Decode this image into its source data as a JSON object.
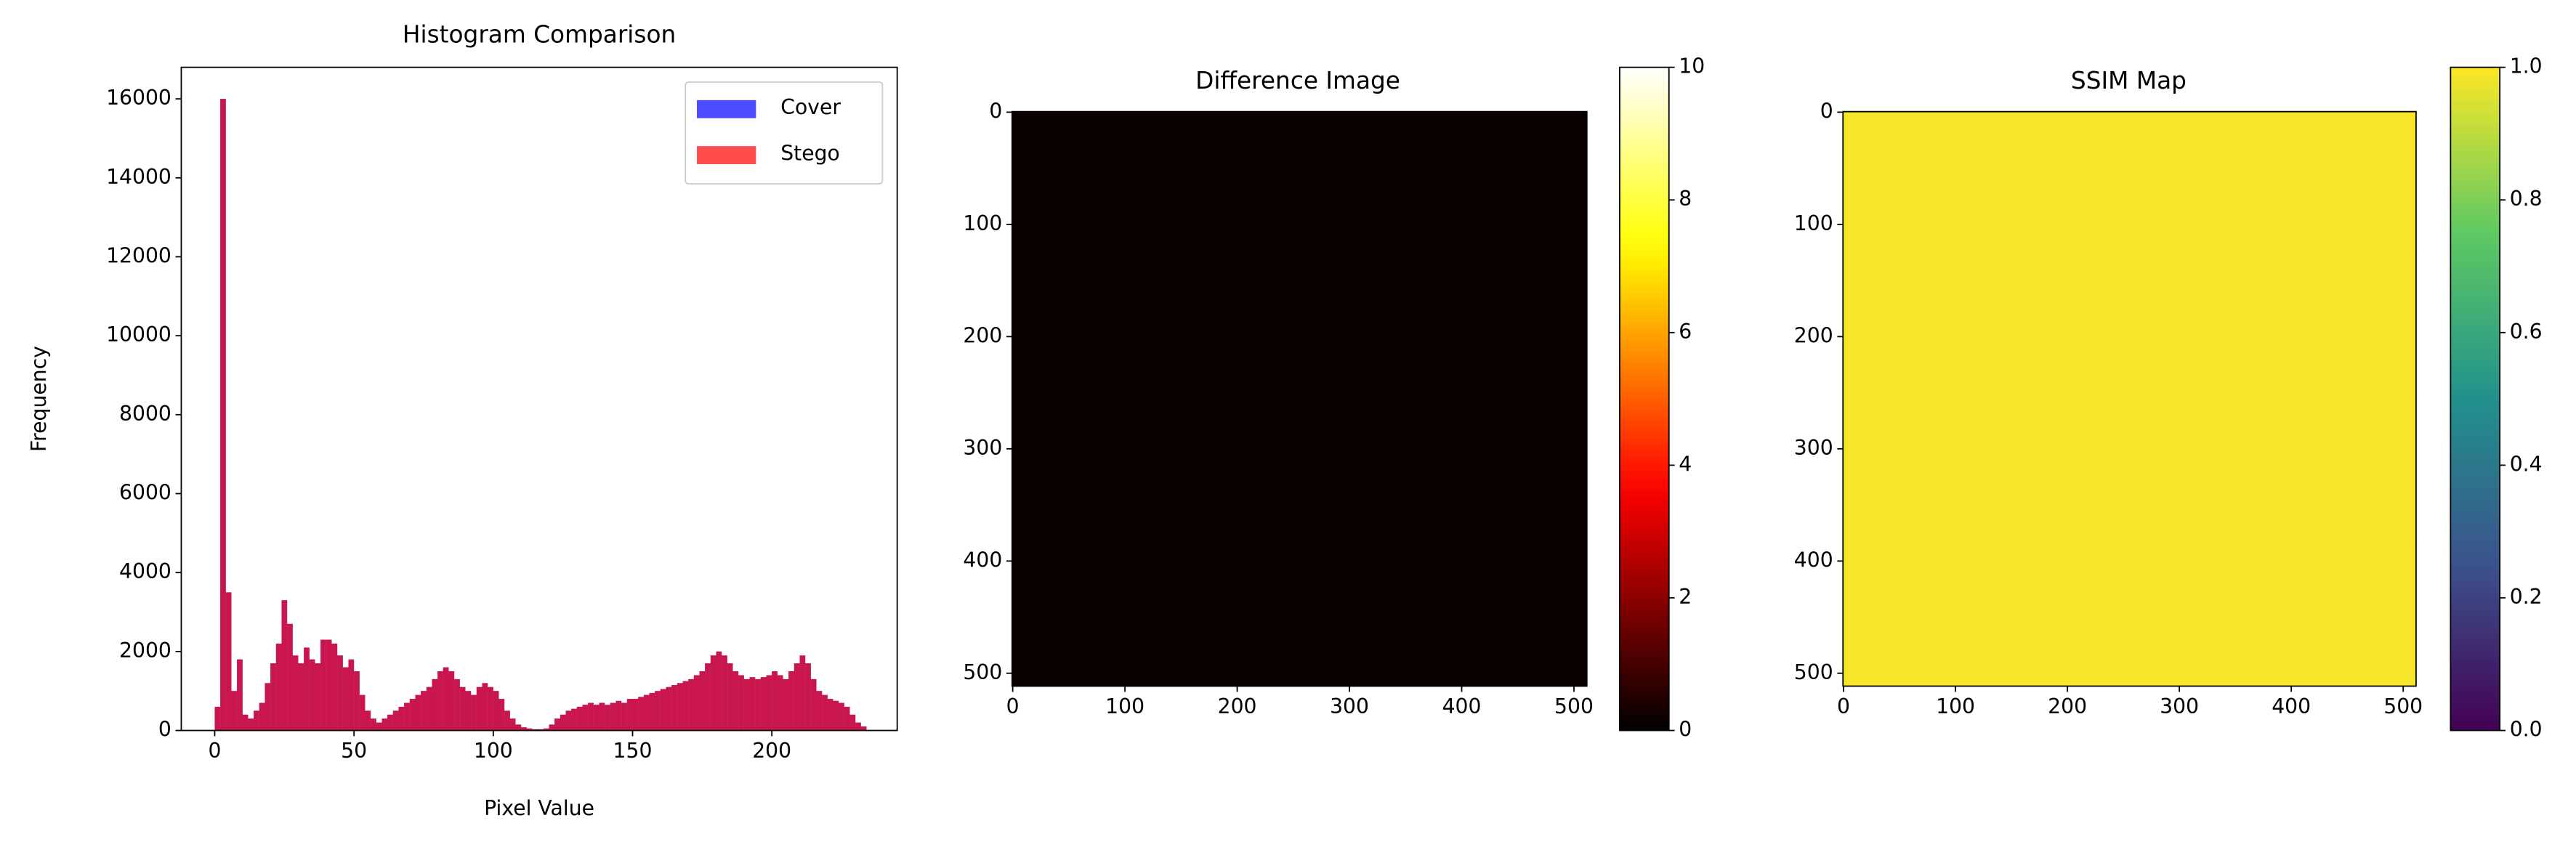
{
  "chart_data": [
    {
      "type": "histogram",
      "title": "Histogram Comparison",
      "xlabel": "Pixel Value",
      "ylabel": "Frequency",
      "bins": [
        0,
        2,
        4,
        6,
        8,
        10,
        12,
        14,
        16,
        18,
        20,
        22,
        24,
        26,
        28,
        30,
        32,
        34,
        36,
        38,
        40,
        42,
        44,
        46,
        48,
        50,
        52,
        54,
        56,
        58,
        60,
        62,
        64,
        66,
        68,
        70,
        72,
        74,
        76,
        78,
        80,
        82,
        84,
        86,
        88,
        90,
        92,
        94,
        96,
        98,
        100,
        102,
        104,
        106,
        108,
        110,
        112,
        114,
        116,
        118,
        120,
        122,
        124,
        126,
        128,
        130,
        132,
        134,
        136,
        138,
        140,
        142,
        144,
        146,
        148,
        150,
        152,
        154,
        156,
        158,
        160,
        162,
        164,
        166,
        168,
        170,
        172,
        174,
        176,
        178,
        180,
        182,
        184,
        186,
        188,
        190,
        192,
        194,
        196,
        198,
        200,
        202,
        204,
        206,
        208,
        210,
        212,
        214,
        216,
        218,
        220,
        222,
        224,
        226,
        228,
        230,
        232,
        234
      ],
      "series": [
        {
          "name": "Cover",
          "color": "#0000ff",
          "values": [
            600,
            16000,
            3500,
            1000,
            1800,
            400,
            300,
            500,
            700,
            1200,
            1700,
            2200,
            3300,
            2700,
            1900,
            1700,
            2100,
            1800,
            1700,
            2300,
            2300,
            2200,
            1900,
            1600,
            1800,
            1500,
            900,
            500,
            300,
            200,
            300,
            400,
            500,
            600,
            700,
            800,
            900,
            1000,
            1100,
            1300,
            1500,
            1600,
            1500,
            1300,
            1100,
            1000,
            900,
            1100,
            1200,
            1100,
            1000,
            800,
            500,
            300,
            150,
            80,
            50,
            30,
            30,
            50,
            150,
            300,
            400,
            500,
            550,
            600,
            650,
            700,
            650,
            700,
            650,
            700,
            750,
            700,
            800,
            800,
            850,
            900,
            950,
            1000,
            1050,
            1100,
            1150,
            1200,
            1250,
            1300,
            1400,
            1500,
            1700,
            1900,
            2000,
            1900,
            1700,
            1500,
            1400,
            1300,
            1350,
            1300,
            1350,
            1400,
            1500,
            1400,
            1300,
            1500,
            1700,
            1900,
            1700,
            1300,
            1000,
            900,
            800,
            750,
            700,
            600,
            400,
            200,
            100
          ]
        },
        {
          "name": "Stego",
          "color": "#ff0000",
          "values": [
            600,
            16000,
            3500,
            1000,
            1800,
            400,
            300,
            500,
            700,
            1200,
            1700,
            2200,
            3300,
            2700,
            1900,
            1700,
            2100,
            1800,
            1700,
            2300,
            2300,
            2200,
            1900,
            1600,
            1800,
            1500,
            900,
            500,
            300,
            200,
            300,
            400,
            500,
            600,
            700,
            800,
            900,
            1000,
            1100,
            1300,
            1500,
            1600,
            1500,
            1300,
            1100,
            1000,
            900,
            1100,
            1200,
            1100,
            1000,
            800,
            500,
            300,
            150,
            80,
            50,
            30,
            30,
            50,
            150,
            300,
            400,
            500,
            550,
            600,
            650,
            700,
            650,
            700,
            650,
            700,
            750,
            700,
            800,
            800,
            850,
            900,
            950,
            1000,
            1050,
            1100,
            1150,
            1200,
            1250,
            1300,
            1400,
            1500,
            1700,
            1900,
            2000,
            1900,
            1700,
            1500,
            1400,
            1300,
            1350,
            1300,
            1350,
            1400,
            1500,
            1400,
            1300,
            1500,
            1700,
            1900,
            1700,
            1300,
            1000,
            900,
            800,
            750,
            700,
            600,
            400,
            200,
            100
          ]
        }
      ],
      "alpha": 0.7,
      "xlim": [
        -12,
        245
      ],
      "ylim": [
        0,
        16800
      ],
      "xticks": [
        0,
        50,
        100,
        150,
        200
      ],
      "yticks": [
        0,
        2000,
        4000,
        6000,
        8000,
        10000,
        12000,
        14000,
        16000
      ],
      "legend": "upper right"
    },
    {
      "type": "image",
      "title": "Difference Image",
      "colormap": "hot",
      "values": [
        [
          0.15,
          0.15,
          0.15,
          0.15
        ],
        [
          0.15,
          0.15,
          0.15,
          0.15
        ],
        [
          0.15,
          0.15,
          0.15,
          0.15
        ],
        [
          0.15,
          0.15,
          0.15,
          0.15
        ]
      ],
      "xlim": [
        -0.5,
        511.5
      ],
      "ylim": [
        511.5,
        -0.5
      ],
      "xticks": [
        0,
        100,
        200,
        300,
        400,
        500
      ],
      "yticks": [
        0,
        100,
        200,
        300,
        400,
        500
      ],
      "clim": [
        0,
        10
      ],
      "cticks": [
        0,
        2,
        4,
        6,
        8,
        10
      ]
    },
    {
      "type": "image",
      "title": "SSIM Map",
      "colormap": "viridis",
      "values": [
        [
          0.99,
          0.99,
          0.99,
          0.99
        ],
        [
          0.99,
          0.99,
          0.99,
          0.99
        ],
        [
          0.99,
          0.99,
          0.99,
          0.99
        ],
        [
          0.99,
          0.99,
          0.99,
          0.99
        ]
      ],
      "xlim": [
        -0.5,
        511.5
      ],
      "ylim": [
        511.5,
        -0.5
      ],
      "xticks": [
        0,
        100,
        200,
        300,
        400,
        500
      ],
      "yticks": [
        0,
        100,
        200,
        300,
        400,
        500
      ],
      "clim": [
        0,
        1
      ],
      "cticks": [
        {
          "value": 0,
          "label": "0.0"
        },
        0.2,
        0.4,
        0.6,
        0.8,
        {
          "value": 1,
          "label": "1.0"
        }
      ]
    }
  ]
}
